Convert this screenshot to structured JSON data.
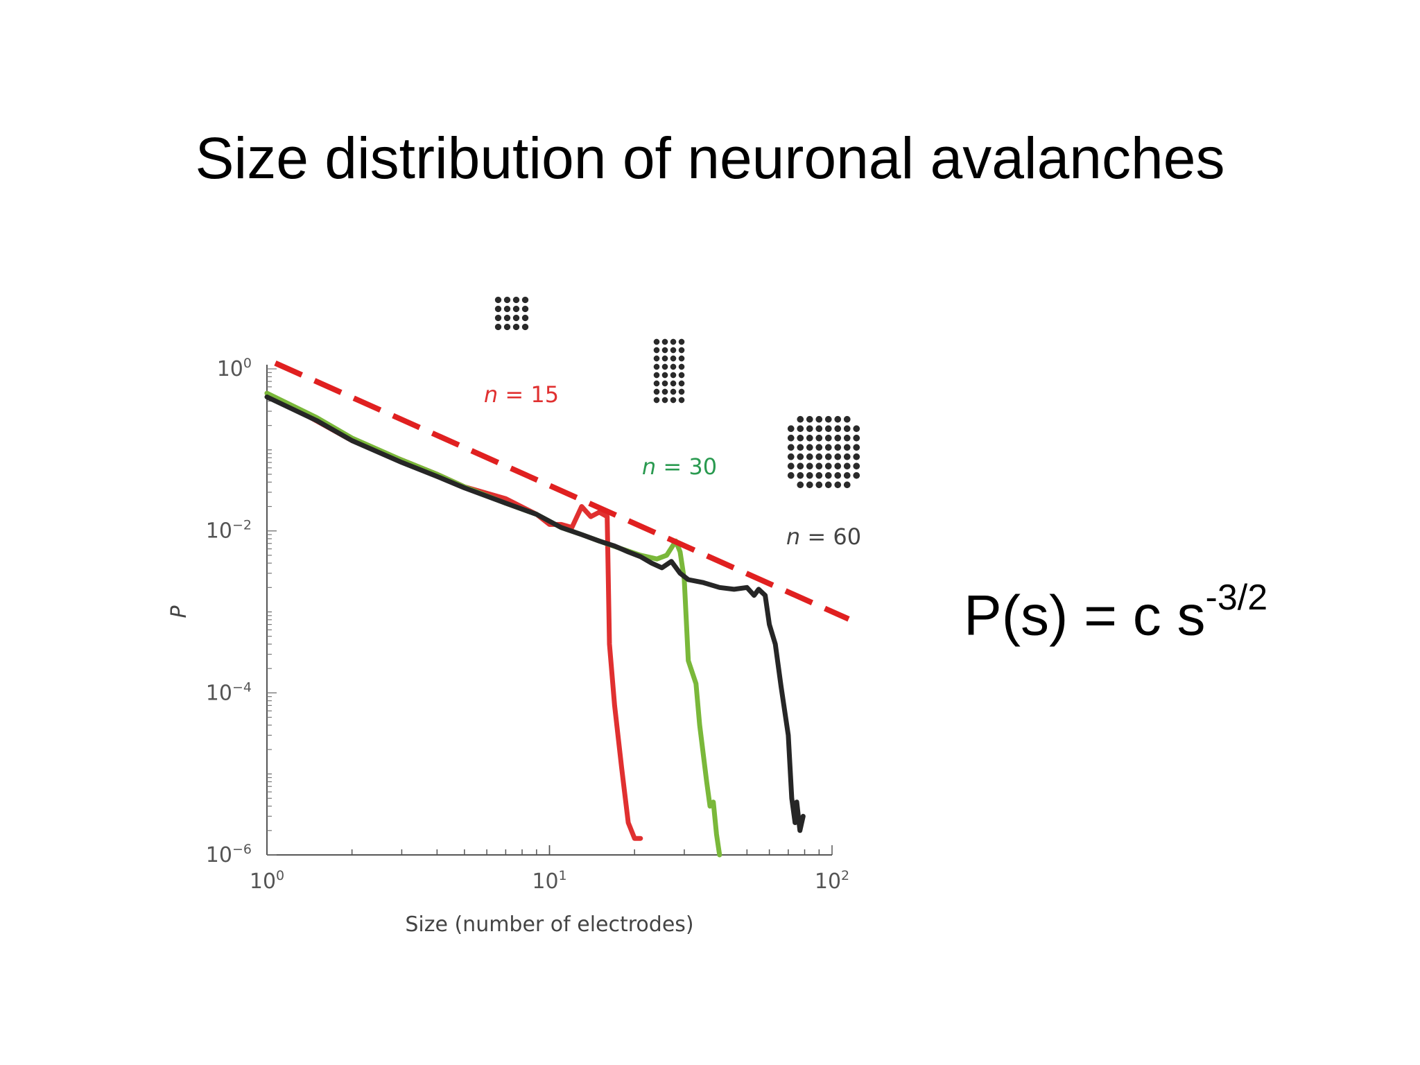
{
  "slide": {
    "title": "Size distribution of neuronal avalanches",
    "formula_base": "P(s) = c s",
    "formula_exponent": "-3/2"
  },
  "chart_data": {
    "type": "line",
    "xscale": "log",
    "yscale": "log",
    "xlim": [
      1,
      100
    ],
    "ylim": [
      1e-06,
      1
    ],
    "xlabel": "Size (number of electrodes)",
    "ylabel": "P",
    "xticks": [
      {
        "base": "10",
        "exp": "0",
        "value": 1
      },
      {
        "base": "10",
        "exp": "1",
        "value": 10
      },
      {
        "base": "10",
        "exp": "2",
        "value": 100
      }
    ],
    "yticks": [
      {
        "base": "10",
        "exp": "0",
        "value": 1
      },
      {
        "base": "10",
        "exp": "−2",
        "value": 0.01
      },
      {
        "base": "10",
        "exp": "−4",
        "value": 0.0001
      },
      {
        "base": "10",
        "exp": "−6",
        "value": 1e-06
      }
    ],
    "series": [
      {
        "name": "n = 15",
        "color": "#e03030",
        "points": [
          [
            1,
            0.5
          ],
          [
            1.3,
            0.3
          ],
          [
            2,
            0.13
          ],
          [
            3,
            0.075
          ],
          [
            4,
            0.05
          ],
          [
            5,
            0.035
          ],
          [
            7,
            0.025
          ],
          [
            9,
            0.016
          ],
          [
            10,
            0.012
          ],
          [
            11,
            0.012
          ],
          [
            12,
            0.011
          ],
          [
            13,
            0.02
          ],
          [
            14,
            0.015
          ],
          [
            15,
            0.017
          ],
          [
            16,
            0.015
          ],
          [
            16.3,
            0.0004
          ],
          [
            17,
            7e-05
          ],
          [
            18,
            1.2e-05
          ],
          [
            19,
            2.5e-06
          ],
          [
            20,
            1.6e-06
          ],
          [
            21,
            1.6e-06
          ]
        ]
      },
      {
        "name": "n = 30",
        "color": "#7ab83a",
        "points": [
          [
            1,
            0.5
          ],
          [
            1.5,
            0.25
          ],
          [
            2,
            0.14
          ],
          [
            3,
            0.075
          ],
          [
            4,
            0.05
          ],
          [
            5,
            0.035
          ],
          [
            7,
            0.022
          ],
          [
            9,
            0.016
          ],
          [
            11,
            0.011
          ],
          [
            13,
            0.009
          ],
          [
            15,
            0.0075
          ],
          [
            18,
            0.006
          ],
          [
            21,
            0.005
          ],
          [
            24,
            0.0045
          ],
          [
            26,
            0.005
          ],
          [
            28,
            0.0075
          ],
          [
            29,
            0.0055
          ],
          [
            30,
            0.0025
          ],
          [
            31,
            0.00025
          ],
          [
            33,
            0.00013
          ],
          [
            34,
            4e-05
          ],
          [
            36,
            8e-06
          ],
          [
            37,
            4e-06
          ],
          [
            38,
            4.5e-06
          ],
          [
            39,
            1.8e-06
          ],
          [
            40,
            1e-06
          ]
        ]
      },
      {
        "name": "n = 60",
        "color": "#262626",
        "points": [
          [
            1,
            0.45
          ],
          [
            1.5,
            0.23
          ],
          [
            2,
            0.13
          ],
          [
            3,
            0.07
          ],
          [
            4,
            0.047
          ],
          [
            5,
            0.034
          ],
          [
            7,
            0.022
          ],
          [
            9,
            0.016
          ],
          [
            11,
            0.011
          ],
          [
            13,
            0.009
          ],
          [
            15,
            0.0075
          ],
          [
            17,
            0.0065
          ],
          [
            19,
            0.0055
          ],
          [
            21,
            0.0048
          ],
          [
            23,
            0.004
          ],
          [
            25,
            0.0035
          ],
          [
            27,
            0.0042
          ],
          [
            29,
            0.003
          ],
          [
            31,
            0.0025
          ],
          [
            35,
            0.0023
          ],
          [
            40,
            0.002
          ],
          [
            45,
            0.0019
          ],
          [
            50,
            0.002
          ],
          [
            53,
            0.0016
          ],
          [
            55,
            0.0019
          ],
          [
            58,
            0.0016
          ],
          [
            60,
            0.0007
          ],
          [
            63,
            0.0004
          ],
          [
            66,
            0.00012
          ],
          [
            70,
            3e-05
          ],
          [
            72,
            5e-06
          ],
          [
            74,
            2.5e-06
          ],
          [
            75,
            4.5e-06
          ],
          [
            77,
            2e-06
          ],
          [
            79,
            3e-06
          ]
        ]
      }
    ],
    "reference_line": {
      "style": "dashed",
      "color": "#e02020",
      "slope": -1.5,
      "points": [
        [
          1,
          1.3
        ],
        [
          100,
          0.00121
        ]
      ]
    },
    "annotations": [
      {
        "text": "n = 15",
        "color": "#e03030"
      },
      {
        "text": "n = 30",
        "color": "#2a9a50"
      },
      {
        "text": "n = 60",
        "color": "#444444"
      }
    ],
    "electrode_grids": [
      {
        "series": "n = 15",
        "cols": 4,
        "rows": 4
      },
      {
        "series": "n = 30",
        "cols": 4,
        "rows": 8
      },
      {
        "series": "n = 60",
        "cols": 8,
        "rows": 8
      }
    ],
    "grid": false,
    "legend": "none"
  }
}
